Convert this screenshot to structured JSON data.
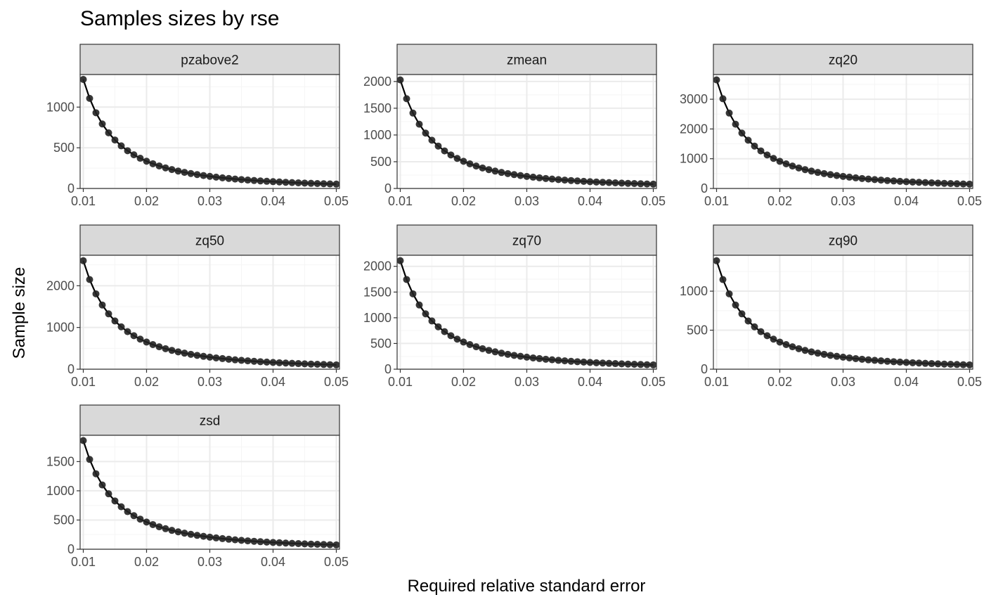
{
  "chart": {
    "title": "Samples sizes by rse",
    "xlabel": "Required relative standard error",
    "ylabel": "Sample size"
  },
  "chart_data": {
    "type": "line",
    "title": "Samples sizes by rse",
    "xlabel": "Required relative standard error",
    "ylabel": "Sample size",
    "grid": true,
    "legend": "none",
    "markers": "points",
    "x": [
      0.01,
      0.011,
      0.012,
      0.013,
      0.014,
      0.015,
      0.016,
      0.017,
      0.018,
      0.019,
      0.02,
      0.021,
      0.022,
      0.023,
      0.024,
      0.025,
      0.026,
      0.027,
      0.028,
      0.029,
      0.03,
      0.031,
      0.032,
      0.033,
      0.034,
      0.035,
      0.036,
      0.037,
      0.038,
      0.039,
      0.04,
      0.041,
      0.042,
      0.043,
      0.044,
      0.045,
      0.046,
      0.047,
      0.048,
      0.049,
      0.05
    ],
    "x_ticks": [
      "0.01",
      "0.02",
      "0.03",
      "0.04",
      "0.05"
    ],
    "xlim": [
      0.0095,
      0.0505
    ],
    "panels": [
      {
        "name": "pzabove2",
        "n_at_001": 1340,
        "ylim": [
          0,
          1400
        ],
        "y_ticks": [
          0,
          500,
          1000
        ]
      },
      {
        "name": "zmean",
        "n_at_001": 2030,
        "ylim": [
          0,
          2130
        ],
        "y_ticks": [
          0,
          500,
          1000,
          1500,
          2000
        ]
      },
      {
        "name": "zq20",
        "n_at_001": 3650,
        "ylim": [
          0,
          3830
        ],
        "y_ticks": [
          0,
          1000,
          2000,
          3000
        ]
      },
      {
        "name": "zq50",
        "n_at_001": 2600,
        "ylim": [
          0,
          2730
        ],
        "y_ticks": [
          0,
          1000,
          2000
        ]
      },
      {
        "name": "zq70",
        "n_at_001": 2110,
        "ylim": [
          0,
          2215
        ],
        "y_ticks": [
          0,
          500,
          1000,
          1500,
          2000
        ]
      },
      {
        "name": "zq90",
        "n_at_001": 1390,
        "ylim": [
          0,
          1460
        ],
        "y_ticks": [
          0,
          500,
          1000
        ]
      },
      {
        "name": "zsd",
        "n_at_001": 1860,
        "ylim": [
          0,
          1950
        ],
        "y_ticks": [
          0,
          500,
          1000,
          1500
        ]
      }
    ],
    "colors": {
      "strip_fill": "#d9d9d9",
      "border": "#333333",
      "grid_major": "#ebebeb",
      "grid_minor": "#f5f5f5",
      "line": "#000000",
      "point": "#222222"
    }
  }
}
